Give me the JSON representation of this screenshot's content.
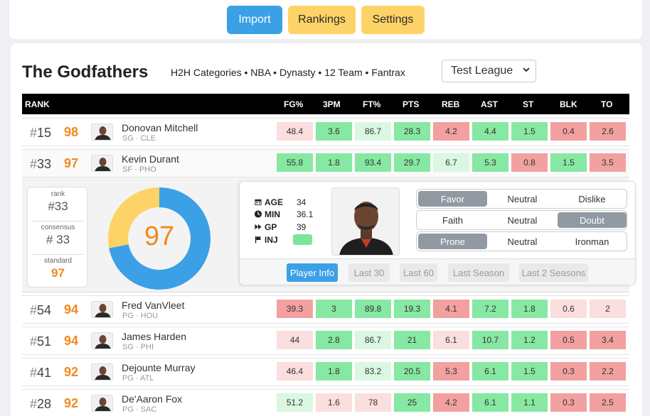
{
  "nav": {
    "import": "Import",
    "rankings": "Rankings",
    "settings": "Settings"
  },
  "header": {
    "team_name": "The Godfathers",
    "league_info": "H2H Categories • NBA • Dynasty • 12 Team • Fantrax",
    "league_select": "Test League"
  },
  "columns": {
    "rank": "RANK",
    "stats": [
      "FG%",
      "3PM",
      "FT%",
      "PTS",
      "REB",
      "AST",
      "ST",
      "BLK",
      "TO"
    ]
  },
  "colors": {
    "green_strong": "#86e8a2",
    "green_light": "#d9f7e1",
    "red_strong": "#f2a0a0",
    "red_light": "#fbdede",
    "orange": "#f08a1c",
    "blue": "#3ba0e6",
    "yellow": "#fdd367"
  },
  "players": [
    {
      "rank_hash": "#",
      "rank": "15",
      "score": "98",
      "name": "Donovan Mitchell",
      "pos": "SG · CLE",
      "stats": [
        "48.4",
        "3.6",
        "86.7",
        "28.3",
        "4.2",
        "4.4",
        "1.5",
        "0.4",
        "2.6"
      ],
      "levels": [
        "rl",
        "gs",
        "gl",
        "gs",
        "rs",
        "gs",
        "gs",
        "rs",
        "rs"
      ]
    },
    {
      "rank_hash": "#",
      "rank": "33",
      "score": "97",
      "name": "Kevin Durant",
      "pos": "SF · PHO",
      "stats": [
        "55.8",
        "1.8",
        "93.4",
        "29.7",
        "6.7",
        "5.3",
        "0.8",
        "1.5",
        "3.5"
      ],
      "levels": [
        "gs",
        "gs",
        "gs",
        "gs",
        "gl",
        "gs",
        "rs",
        "gs",
        "rs"
      ]
    },
    {
      "rank_hash": "#",
      "rank": "54",
      "score": "94",
      "name": "Fred VanVleet",
      "pos": "PG · HOU",
      "stats": [
        "39.3",
        "3",
        "89.8",
        "19.3",
        "4.1",
        "7.2",
        "1.8",
        "0.6",
        "2"
      ],
      "levels": [
        "rs",
        "gs",
        "gs",
        "gs",
        "rs",
        "gs",
        "gs",
        "rl",
        "rl"
      ]
    },
    {
      "rank_hash": "#",
      "rank": "51",
      "score": "94",
      "name": "James Harden",
      "pos": "SG · PHI",
      "stats": [
        "44",
        "2.8",
        "86.7",
        "21",
        "6.1",
        "10.7",
        "1.2",
        "0.5",
        "3.4"
      ],
      "levels": [
        "rl",
        "gs",
        "gl",
        "gs",
        "rl",
        "gs",
        "gs",
        "rs",
        "rs"
      ]
    },
    {
      "rank_hash": "#",
      "rank": "41",
      "score": "92",
      "name": "Dejounte Murray",
      "pos": "PG · ATL",
      "stats": [
        "46.4",
        "1.8",
        "83.2",
        "20.5",
        "5.3",
        "6.1",
        "1.5",
        "0.3",
        "2.2"
      ],
      "levels": [
        "rl",
        "gs",
        "gl",
        "gs",
        "rs",
        "gs",
        "gs",
        "rs",
        "rs"
      ]
    },
    {
      "rank_hash": "#",
      "rank": "28",
      "score": "92",
      "name": "De'Aaron Fox",
      "pos": "PG · SAC",
      "stats": [
        "51.2",
        "1.6",
        "78",
        "25",
        "4.2",
        "6.1",
        "1.1",
        "0.3",
        "2.5"
      ],
      "levels": [
        "gl",
        "rl",
        "rl",
        "gs",
        "rs",
        "gs",
        "gs",
        "rs",
        "rs"
      ]
    }
  ],
  "detail": {
    "rank_label": "rank",
    "rank_value": "#33",
    "consensus_label": "consensus",
    "consensus_value": "# 33",
    "standard_label": "standard",
    "standard_value": "97",
    "score": "97",
    "score_fraction": 0.72,
    "info": [
      {
        "icon": "calendar-icon",
        "key": "AGE",
        "value": "34"
      },
      {
        "icon": "clock-icon",
        "key": "MIN",
        "value": "36.1"
      },
      {
        "icon": "fast-forward-icon",
        "key": "GP",
        "value": "39"
      },
      {
        "icon": "flag-icon",
        "key": "INJ",
        "value": ""
      }
    ],
    "toggles": [
      {
        "options": [
          "Favor",
          "Neutral",
          "Dislike"
        ],
        "selected": 0
      },
      {
        "options": [
          "Faith",
          "Neutral",
          "Doubt"
        ],
        "selected": 2
      },
      {
        "options": [
          "Prone",
          "Neutral",
          "Ironman"
        ],
        "selected": 0
      }
    ],
    "tabs": [
      "Player Info",
      "Last 30",
      "Last 60",
      "Last Season",
      "Last 2 Seasons"
    ],
    "active_tab": 0
  }
}
